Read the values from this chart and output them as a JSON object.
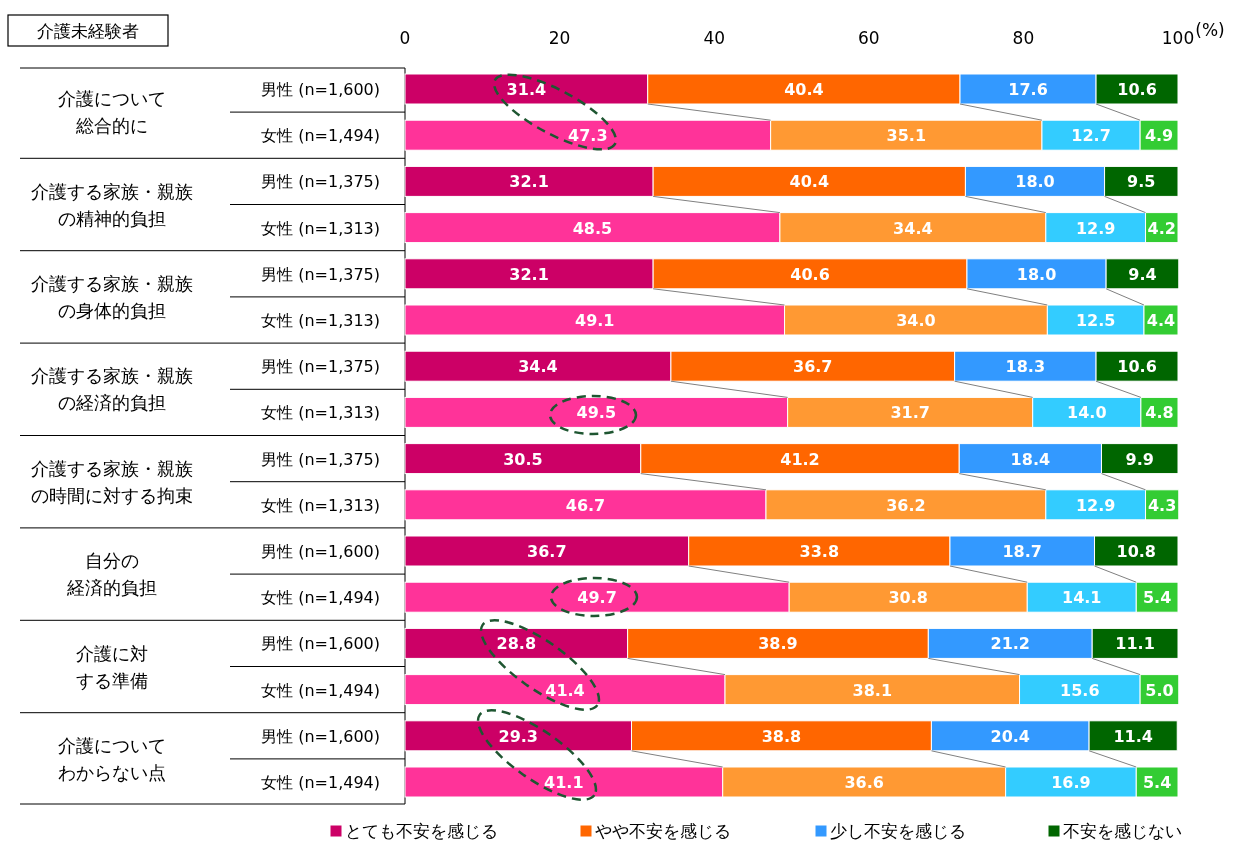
{
  "chart_data": {
    "type": "bar",
    "orientation": "horizontal",
    "stacked": true,
    "title": "介護未経験者",
    "xlabel": "(%)",
    "categories": [
      "男性 (n=1,600)",
      "女性 (n=1,494)",
      "男性 (n=1,375)",
      "女性 (n=1,313)",
      "男性 (n=1,375)",
      "女性 (n=1,313)",
      "男性 (n=1,375)",
      "女性 (n=1,313)",
      "男性 (n=1,375)",
      "女性 (n=1,313)",
      "男性 (n=1,600)",
      "女性 (n=1,494)",
      "男性 (n=1,600)",
      "女性 (n=1,494)",
      "男性 (n=1,600)",
      "女性 (n=1,494)"
    ],
    "annotations": [
      "介護について総合的に",
      "介護する家族・親族の精神的負担",
      "介護する家族・親族の身体的負担",
      "介護する家族・親族の経済的負担",
      "介護する家族・親族の時間に対する拘束",
      "自分の経済的負担",
      "介護に対する準備",
      "介護についてわからない点"
    ],
    "series": [
      {
        "name": "とても不安を感じる",
        "color": "#cc0066",
        "colors": [
          "#cc0066",
          "#ff3399",
          "#cc0066",
          "#ff3399",
          "#cc0066",
          "#ff3399",
          "#cc0066",
          "#ff3399",
          "#cc0066",
          "#ff3399",
          "#cc0066",
          "#ff3399",
          "#cc0066",
          "#ff3399",
          "#cc0066",
          "#ff3399"
        ],
        "values": [
          31.4,
          47.3,
          32.1,
          48.5,
          32.1,
          49.1,
          34.4,
          49.5,
          30.5,
          46.7,
          36.7,
          49.7,
          28.8,
          41.4,
          29.3,
          41.1
        ],
        "value_labels": [
          "31.4",
          "47.3",
          "32.1",
          "48.5",
          "32.1",
          "49.1",
          "34.4",
          "49.5",
          "30.5",
          "46.7",
          "36.7",
          "49.7",
          "28.8",
          "41.4",
          "29.3",
          "41.1"
        ]
      },
      {
        "name": "やや不安を感じる",
        "color": "#ff6600",
        "colors": [
          "#ff6600",
          "#ff9933",
          "#ff6600",
          "#ff9933",
          "#ff6600",
          "#ff9933",
          "#ff6600",
          "#ff9933",
          "#ff6600",
          "#ff9933",
          "#ff6600",
          "#ff9933",
          "#ff6600",
          "#ff9933",
          "#ff6600",
          "#ff9933"
        ],
        "values": [
          40.4,
          35.1,
          40.4,
          34.4,
          40.6,
          34.0,
          36.7,
          31.7,
          41.2,
          36.2,
          33.8,
          30.8,
          38.9,
          38.1,
          38.8,
          36.6
        ],
        "value_labels": [
          "40.4",
          "35.1",
          "40.4",
          "34.4",
          "40.6",
          "34.0",
          "36.7",
          "31.7",
          "41.2",
          "36.2",
          "33.8",
          "30.8",
          "38.9",
          "38.1",
          "38.8",
          "36.6"
        ]
      },
      {
        "name": "少し不安を感じる",
        "color": "#3399ff",
        "colors": [
          "#3399ff",
          "#33ccff",
          "#3399ff",
          "#33ccff",
          "#3399ff",
          "#33ccff",
          "#3399ff",
          "#33ccff",
          "#3399ff",
          "#33ccff",
          "#3399ff",
          "#33ccff",
          "#3399ff",
          "#33ccff",
          "#3399ff",
          "#33ccff"
        ],
        "values": [
          17.6,
          12.7,
          18.0,
          12.9,
          18.0,
          12.5,
          18.3,
          14.0,
          18.4,
          12.9,
          18.7,
          14.1,
          21.2,
          15.6,
          20.4,
          16.9
        ],
        "value_labels": [
          "17.6",
          "12.7",
          "18.0",
          "12.9",
          "18.0",
          "12.5",
          "18.3",
          "14.0",
          "18.4",
          "12.9",
          "18.7",
          "14.1",
          "21.2",
          "15.6",
          "20.4",
          "16.9"
        ]
      },
      {
        "name": "不安を感じない",
        "color": "#006600",
        "colors": [
          "#006600",
          "#33cc33",
          "#006600",
          "#33cc33",
          "#006600",
          "#33cc33",
          "#006600",
          "#33cc33",
          "#006600",
          "#33cc33",
          "#006600",
          "#33cc33",
          "#006600",
          "#33cc33",
          "#006600",
          "#33cc33"
        ],
        "values": [
          10.6,
          4.9,
          9.5,
          4.2,
          9.4,
          4.4,
          10.6,
          4.8,
          9.9,
          4.3,
          10.8,
          5.4,
          11.1,
          5.0,
          11.4,
          5.4
        ],
        "value_labels": [
          "10.6",
          "4.9",
          "9.5",
          "4.2",
          "9.4",
          "4.4",
          "10.6",
          "4.8",
          "9.9",
          "4.3",
          "10.8",
          "5.4",
          "11.1",
          "5.0",
          "11.4",
          "5.4"
        ]
      }
    ],
    "xlim": [
      0,
      100
    ],
    "xticks": [
      0,
      20,
      40,
      60,
      80,
      100
    ],
    "legend": "bottom"
  }
}
